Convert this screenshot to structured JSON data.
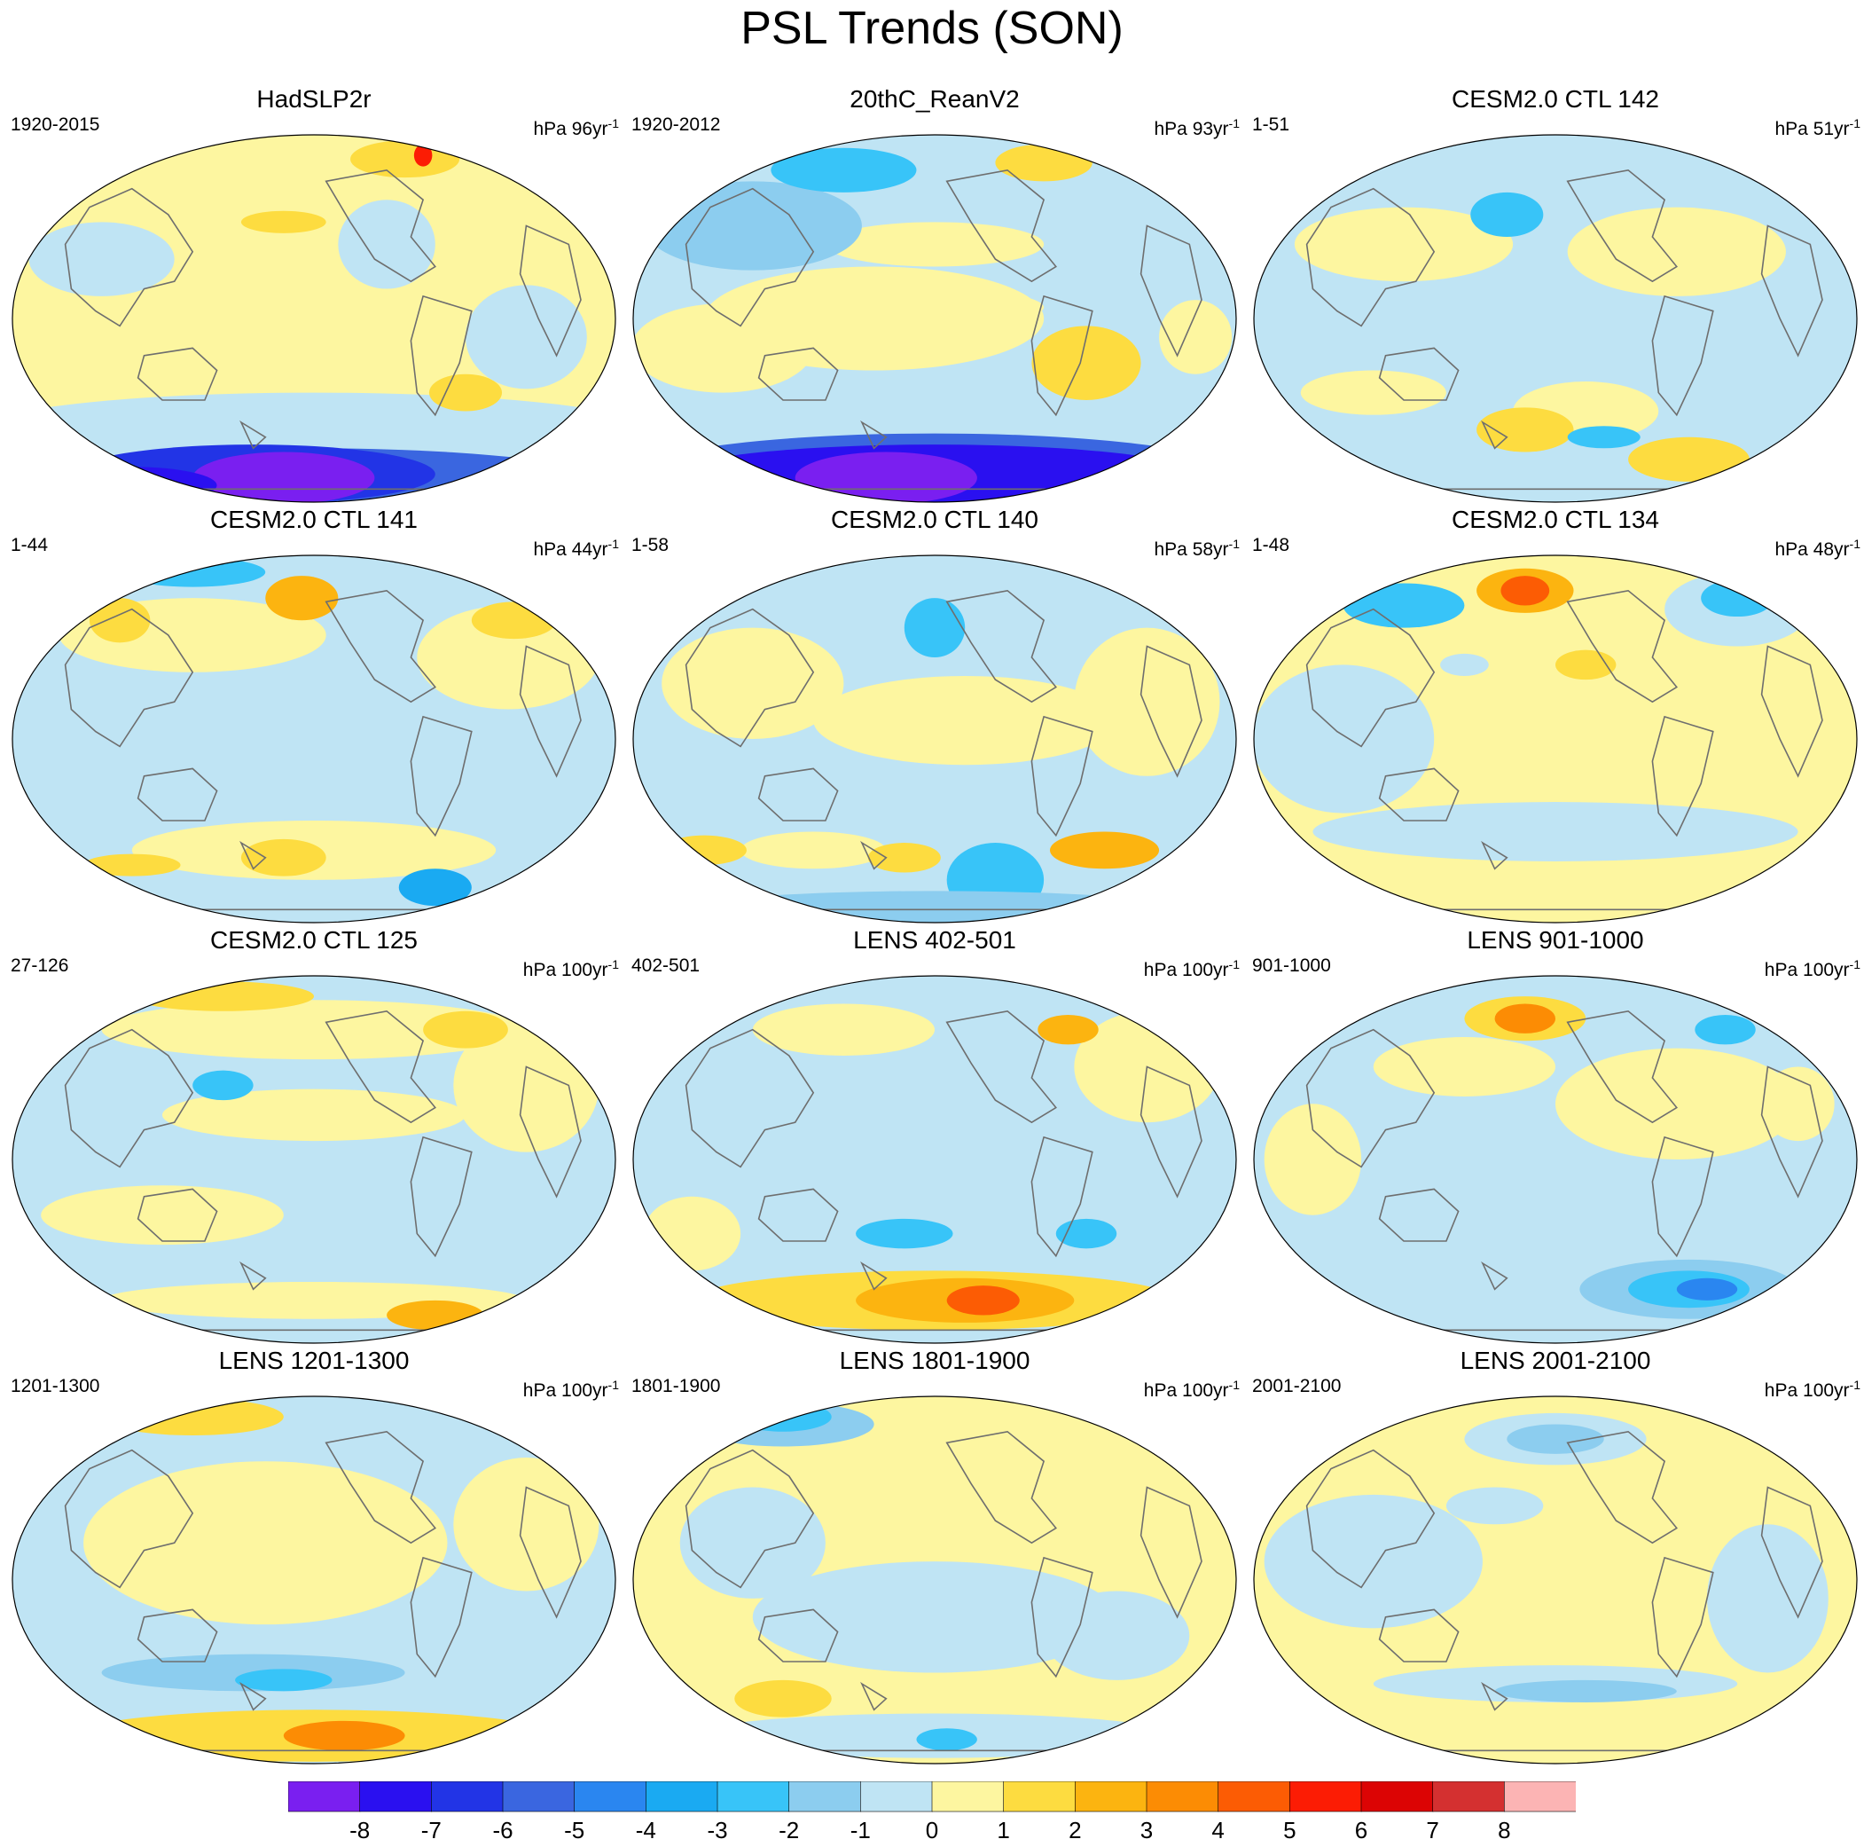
{
  "title": "PSL Trends (SON)",
  "panels": [
    {
      "title": "HadSLP2r",
      "period": "1920-2015",
      "units_prefix": "hPa",
      "units_rate": "96yr",
      "units_exp": "-1",
      "pattern": "had"
    },
    {
      "title": "20thC_ReanV2",
      "period": "1920-2012",
      "units_prefix": "hPa",
      "units_rate": "93yr",
      "units_exp": "-1",
      "pattern": "rean"
    },
    {
      "title": "CESM2.0 CTL 142",
      "period": "1-51",
      "units_prefix": "hPa",
      "units_rate": "51yr",
      "units_exp": "-1",
      "pattern": "c142"
    },
    {
      "title": "CESM2.0 CTL 141",
      "period": "1-44",
      "units_prefix": "hPa",
      "units_rate": "44yr",
      "units_exp": "-1",
      "pattern": "c141"
    },
    {
      "title": "CESM2.0 CTL 140",
      "period": "1-58",
      "units_prefix": "hPa",
      "units_rate": "58yr",
      "units_exp": "-1",
      "pattern": "c140"
    },
    {
      "title": "CESM2.0 CTL 134",
      "period": "1-48",
      "units_prefix": "hPa",
      "units_rate": "48yr",
      "units_exp": "-1",
      "pattern": "c134"
    },
    {
      "title": "CESM2.0 CTL 125",
      "period": "27-126",
      "units_prefix": "hPa",
      "units_rate": "100yr",
      "units_exp": "-1",
      "pattern": "c125"
    },
    {
      "title": "LENS 402-501",
      "period": "402-501",
      "units_prefix": "hPa",
      "units_rate": "100yr",
      "units_exp": "-1",
      "pattern": "l402"
    },
    {
      "title": "LENS 901-1000",
      "period": "901-1000",
      "units_prefix": "hPa",
      "units_rate": "100yr",
      "units_exp": "-1",
      "pattern": "l901"
    },
    {
      "title": "LENS 1201-1300",
      "period": "1201-1300",
      "units_prefix": "hPa",
      "units_rate": "100yr",
      "units_exp": "-1",
      "pattern": "l1201"
    },
    {
      "title": "LENS 1801-1900",
      "period": "1801-1900",
      "units_prefix": "hPa",
      "units_rate": "100yr",
      "units_exp": "-1",
      "pattern": "l1801"
    },
    {
      "title": "LENS 2001-2100",
      "period": "2001-2100",
      "units_prefix": "hPa",
      "units_rate": "100yr",
      "units_exp": "-1",
      "pattern": "l2001"
    }
  ],
  "colorbar": {
    "labels": [
      "-8",
      "-7",
      "-6",
      "-5",
      "-4",
      "-3",
      "-2",
      "-1",
      "0",
      "1",
      "2",
      "3",
      "4",
      "5",
      "6",
      "7",
      "8"
    ],
    "colors": [
      "#7a1ff0",
      "#2a10f0",
      "#2234e6",
      "#3a66e0",
      "#2a86f0",
      "#1aaaf2",
      "#38c4f8",
      "#8ccdef",
      "#bfe4f4",
      "#fdf6a0",
      "#fddc40",
      "#fcb410",
      "#fc8c04",
      "#fc5c04",
      "#fc1c04",
      "#dc0404",
      "#d43030",
      "#fcb4b4"
    ]
  }
}
